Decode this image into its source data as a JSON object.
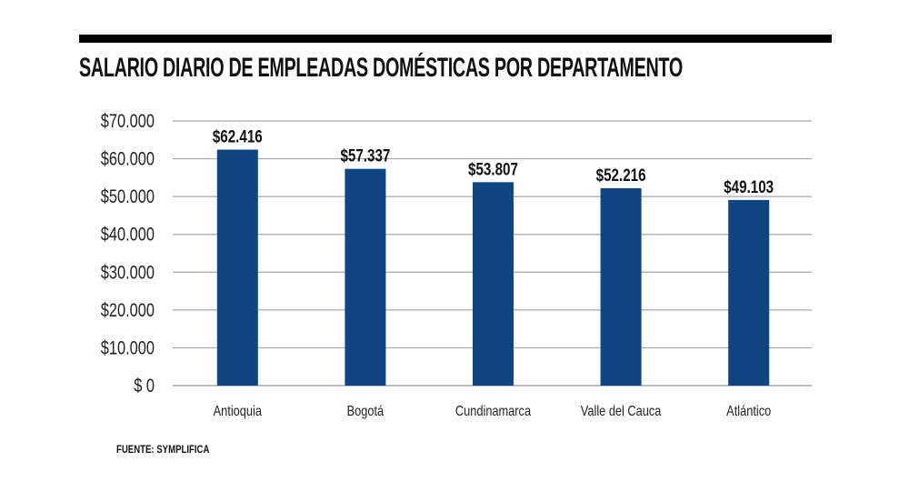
{
  "chart_data": {
    "type": "bar",
    "title": "SALARIO DIARIO DE EMPLEADAS DOMÉSTICAS POR DEPARTAMENTO",
    "categories": [
      "Antioquia",
      "Bogotá",
      "Cundinamarca",
      "Valle del Cauca",
      "Atlántico"
    ],
    "values": [
      62416,
      57337,
      53807,
      52216,
      49103
    ],
    "data_labels": [
      "$62.416",
      "$57.337",
      "$53.807",
      "$52.216",
      "$49.103"
    ],
    "yticks": [
      0,
      10000,
      20000,
      30000,
      40000,
      50000,
      60000,
      70000
    ],
    "ytick_labels": [
      "$ 0",
      "$10.000",
      "$20.000",
      "$30.000",
      "$40.000",
      "$50.000",
      "$60.000",
      "$70.000"
    ],
    "ylim": [
      0,
      70000
    ],
    "xlabel": "",
    "ylabel": "",
    "grid": true,
    "bar_color": "#0f4682",
    "grid_color": "#a6a6a6"
  },
  "source": "FUENTE: SYMPLIFICA"
}
